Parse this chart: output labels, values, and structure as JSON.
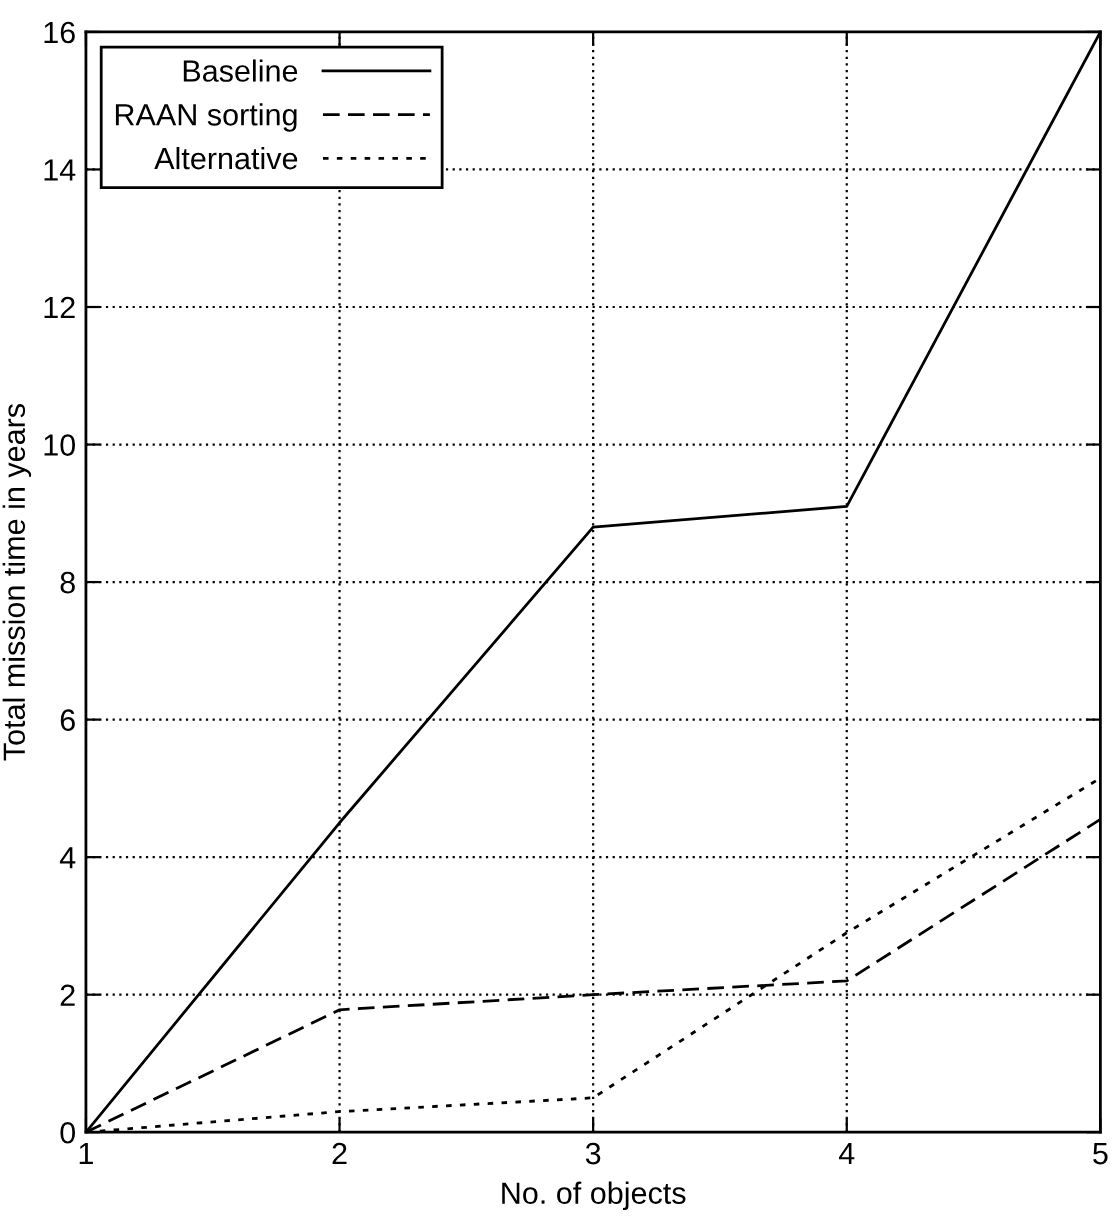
{
  "chart_data": {
    "type": "line",
    "xlabel": "No. of objects",
    "ylabel": "Total mission time in years",
    "x": [
      1,
      2,
      3,
      4,
      5
    ],
    "series": [
      {
        "name": "Baseline",
        "color": "#000000",
        "line_style": "solid",
        "values": [
          0,
          4.5,
          8.8,
          9.1,
          16
        ]
      },
      {
        "name": "RAAN sorting",
        "color": "#000000",
        "line_style": "dashed",
        "values": [
          0,
          1.78,
          2.0,
          2.2,
          4.55
        ]
      },
      {
        "name": "Alternative",
        "color": "#000000",
        "line_style": "dotted",
        "values": [
          0,
          0.3,
          0.5,
          2.9,
          5.15
        ]
      }
    ],
    "xlim": [
      1,
      5
    ],
    "xticks": [
      1,
      2,
      3,
      4,
      5
    ],
    "ylim": [
      0,
      16
    ],
    "yticks": [
      0,
      2,
      4,
      6,
      8,
      10,
      12,
      14,
      16
    ],
    "grid": true,
    "legend": "top left",
    "marker": "none"
  }
}
